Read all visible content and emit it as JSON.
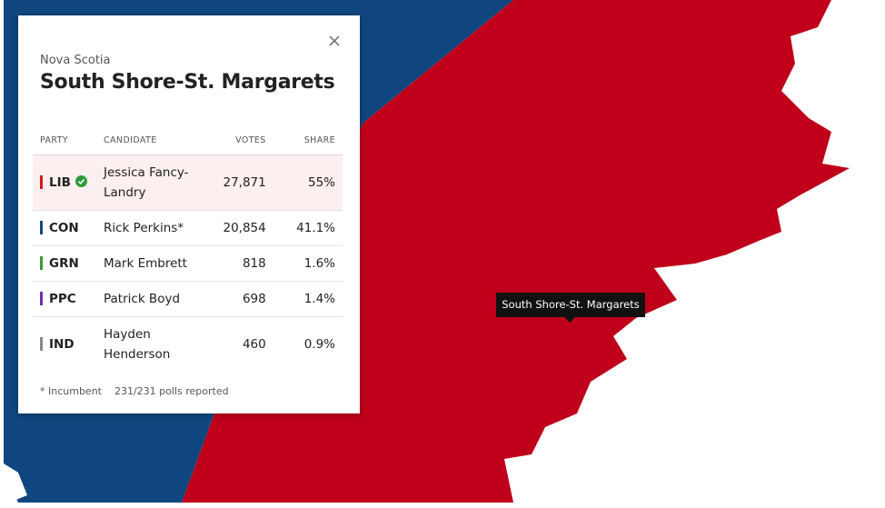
{
  "region": "Nova Scotia",
  "title": "South Shore-St. Margarets",
  "table": {
    "columns": [
      "PARTY",
      "CANDIDATE",
      "VOTES",
      "SHARE"
    ],
    "rows": [
      {
        "party": "LIB",
        "candidate": "Jessica Fancy-Landry",
        "votes": "27,871",
        "share": "55%",
        "color": "#d71920",
        "winner": true
      },
      {
        "party": "CON",
        "candidate": "Rick Perkins*",
        "votes": "20,854",
        "share": "41.1%",
        "color": "#1a4782",
        "winner": false
      },
      {
        "party": "GRN",
        "candidate": "Mark Embrett",
        "votes": "818",
        "share": "1.6%",
        "color": "#3d9b35",
        "winner": false
      },
      {
        "party": "PPC",
        "candidate": "Patrick Boyd",
        "votes": "698",
        "share": "1.4%",
        "color": "#6f2da8",
        "winner": false
      },
      {
        "party": "IND",
        "candidate": "Hayden Henderson",
        "votes": "460",
        "share": "0.9%",
        "color": "#888888",
        "winner": false
      }
    ]
  },
  "footnote": {
    "incumbent": "* Incumbent",
    "polls": "231/231 polls reported"
  },
  "tooltip": "South Shore-St. Margarets"
}
